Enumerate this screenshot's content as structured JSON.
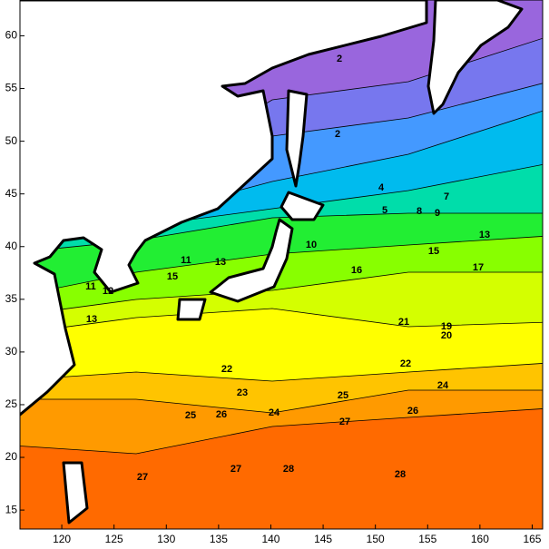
{
  "map": {
    "xlim": [
      116,
      166
    ],
    "ylim": [
      13.2,
      63.4
    ],
    "xticks": [
      120,
      125,
      130,
      135,
      140,
      145,
      150,
      155,
      160,
      165
    ],
    "yticks": [
      15,
      20,
      25,
      30,
      35,
      40,
      45,
      50,
      55,
      60
    ],
    "contour_labels": [
      2,
      2,
      4,
      5,
      7,
      8,
      9,
      10,
      13,
      11,
      15,
      16,
      15,
      17,
      12,
      11,
      13,
      21,
      19,
      20,
      22,
      22,
      23,
      24,
      25,
      24,
      25,
      26,
      26,
      27,
      27,
      27,
      28,
      28,
      13
    ]
  }
}
